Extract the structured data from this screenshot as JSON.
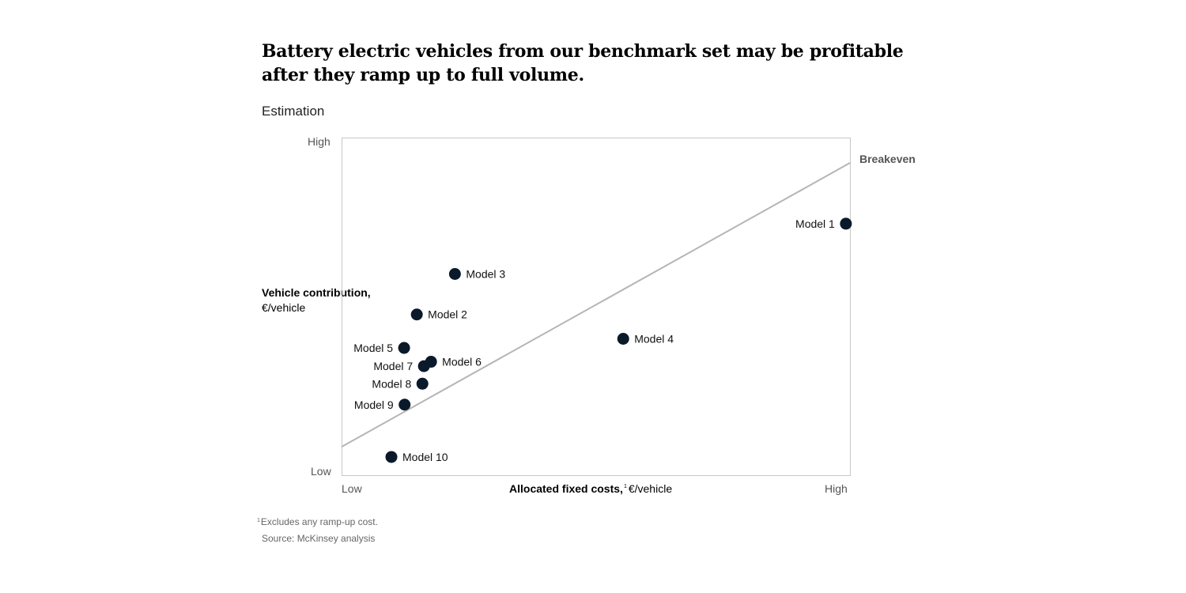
{
  "title": "Battery electric vehicles from our benchmark set may be profitable after they ramp up to full volume.",
  "subtitle": "Estimation",
  "footnote": {
    "marker": "1",
    "text": "Excludes any ramp-up cost."
  },
  "source": "Source: McKinsey analysis",
  "colors": {
    "point": "#0a1a2b",
    "breakeven_line": "#b5b5b5",
    "frame": "#c8c8c8"
  },
  "chart_data": {
    "type": "scatter",
    "title": "Battery electric vehicles from our benchmark set may be profitable after they ramp up to full volume.",
    "subtitle": "Estimation",
    "xlabel": {
      "bold": "Allocated fixed costs,",
      "footnote_marker": "1",
      "unit": "€/vehicle"
    },
    "ylabel": {
      "bold": "Vehicle contribution,",
      "unit": "€/vehicle"
    },
    "x_ticks": [
      "Low",
      "High"
    ],
    "y_ticks": [
      "Low",
      "High"
    ],
    "xlim": [
      0,
      100
    ],
    "ylim": [
      0,
      100
    ],
    "grid": false,
    "points": [
      {
        "label": "Model 1",
        "x": 99.2,
        "y": 74.5,
        "label_side": "left"
      },
      {
        "label": "Model 2",
        "x": 14.8,
        "y": 47.6,
        "label_side": "right"
      },
      {
        "label": "Model 3",
        "x": 22.3,
        "y": 59.6,
        "label_side": "right"
      },
      {
        "label": "Model 4",
        "x": 55.4,
        "y": 40.4,
        "label_side": "right"
      },
      {
        "label": "Model 5",
        "x": 12.3,
        "y": 37.7,
        "label_side": "left"
      },
      {
        "label": "Model 6",
        "x": 17.6,
        "y": 33.6,
        "label_side": "right"
      },
      {
        "label": "Model 7",
        "x": 16.2,
        "y": 32.3,
        "label_side": "left"
      },
      {
        "label": "Model 8",
        "x": 15.9,
        "y": 27.1,
        "label_side": "left"
      },
      {
        "label": "Model 9",
        "x": 12.4,
        "y": 20.9,
        "label_side": "left"
      },
      {
        "label": "Model 10",
        "x": 9.8,
        "y": 5.4,
        "label_side": "right"
      }
    ],
    "breakeven_line": {
      "label": "Breakeven",
      "start": {
        "x": 0,
        "y": 8.4
      },
      "end": {
        "x": 100,
        "y": 92.5
      }
    }
  }
}
